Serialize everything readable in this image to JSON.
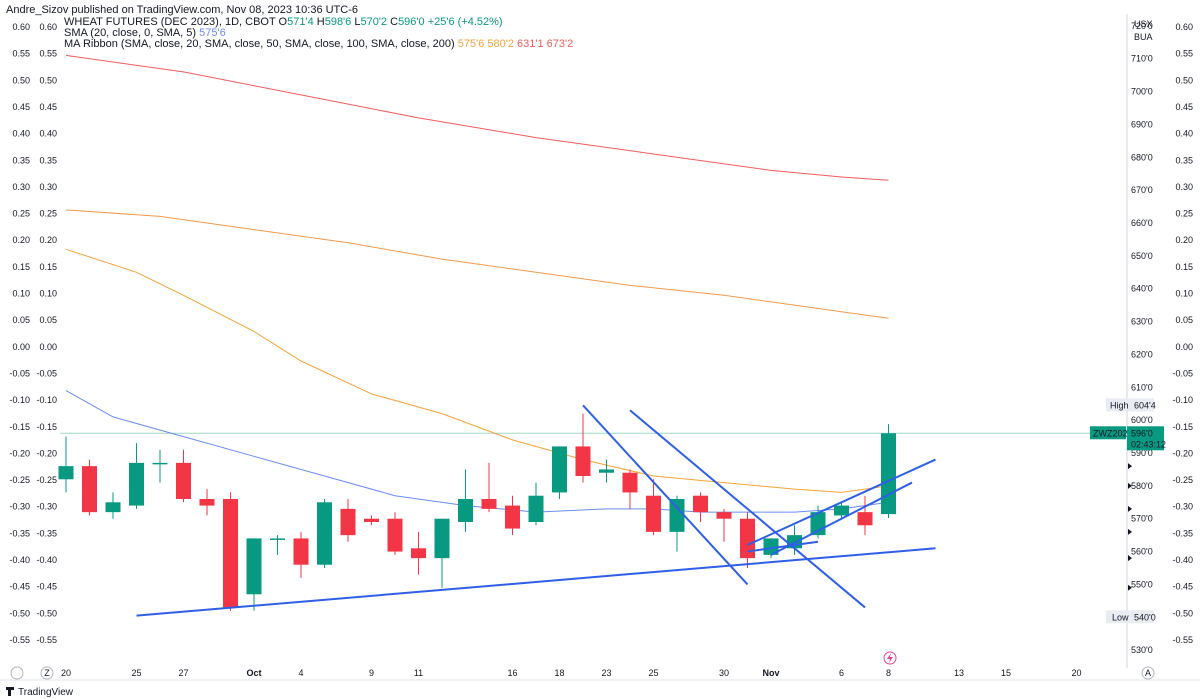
{
  "publisher": "Andre_Sizov published on TradingView.com, Nov 08, 2023 10:36 UTC-6",
  "legend": {
    "symbol": "WHEAT FUTURES (DEC 2023), 1D, CBOT",
    "ohlc": {
      "o_label": "O",
      "o": "571'4",
      "h_label": "H",
      "h": "598'6",
      "l_label": "L",
      "l": "570'2",
      "c_label": "C",
      "c": "596'0",
      "change": "+25'6 (+4.52%)"
    },
    "sma_label": "SMA (20, close, 0, SMA, 5)",
    "sma_value": "575'6",
    "ribbon_label": "MA Ribbon (SMA, close, 20, SMA, close, 50, SMA, close, 100, SMA, close, 200)",
    "ribbon_values": [
      "575'6",
      "580'2",
      "631'1",
      "673'2"
    ]
  },
  "currency": {
    "unit": "USX",
    "sub": "BUA"
  },
  "price_labels": {
    "high_label": "High",
    "high_value": "604'4",
    "low_label": "Low",
    "low_value": "540'0",
    "symbol_tag": "ZWZ2023",
    "last_price": "596'0",
    "countdown": "02:43:12"
  },
  "bottom": {
    "tz": "Z",
    "auto": "A",
    "brand": "TradingView"
  },
  "colors": {
    "up": "#089981",
    "down": "#f23645",
    "sma": "#6b8cf2",
    "ma50": "#f7a23a",
    "ma100": "#f29a4b",
    "ma200": "#f35c5c",
    "trendline": "#2f5fe6"
  },
  "chart_data": {
    "type": "candlestick",
    "x_ticks": [
      "20",
      "25",
      "27",
      "Oct",
      "4",
      "9",
      "11",
      "16",
      "18",
      "23",
      "25",
      "30",
      "Nov",
      "6",
      "8",
      "13",
      "15",
      "20"
    ],
    "price_ticks": [
      "530'0",
      "540'0",
      "550'0",
      "560'0",
      "570'0",
      "580'0",
      "590'0",
      "600'0",
      "610'0",
      "620'0",
      "630'0",
      "640'0",
      "650'0",
      "660'0",
      "670'0",
      "680'0",
      "690'0",
      "700'0",
      "710'0",
      "720'0"
    ],
    "left_ticks": [
      "0.60",
      "0.55",
      "0.50",
      "0.45",
      "0.40",
      "0.35",
      "0.30",
      "0.25",
      "0.20",
      "0.15",
      "0.10",
      "0.05",
      "0.00",
      "-0.05",
      "-0.10",
      "-0.15",
      "-0.20",
      "-0.25",
      "-0.30",
      "-0.35",
      "-0.40",
      "-0.45",
      "-0.50",
      "-0.55"
    ],
    "price_range": [
      527,
      723
    ],
    "candles": [
      {
        "o": 582.0,
        "h": 595.0,
        "l": 578.0,
        "c": 586.0
      },
      {
        "o": 586.0,
        "h": 588.0,
        "l": 571.0,
        "c": 572.0
      },
      {
        "o": 572.0,
        "h": 578.0,
        "l": 570.0,
        "c": 575.0
      },
      {
        "o": 574.0,
        "h": 593.0,
        "l": 573.0,
        "c": 587.0
      },
      {
        "o": 587.0,
        "h": 591.0,
        "l": 581.0,
        "c": 587.0
      },
      {
        "o": 587.0,
        "h": 591.0,
        "l": 575.0,
        "c": 576.0
      },
      {
        "o": 576.0,
        "h": 579.0,
        "l": 571.0,
        "c": 574.0
      },
      {
        "o": 576.0,
        "h": 578.0,
        "l": 542.0,
        "c": 543.0
      },
      {
        "o": 547.0,
        "h": 564.0,
        "l": 542.0,
        "c": 564.0
      },
      {
        "o": 564.0,
        "h": 565.0,
        "l": 559.0,
        "c": 564.0
      },
      {
        "o": 564.0,
        "h": 566.0,
        "l": 552.0,
        "c": 556.0
      },
      {
        "o": 556.0,
        "h": 576.0,
        "l": 555.0,
        "c": 575.0
      },
      {
        "o": 573.0,
        "h": 576.0,
        "l": 563.0,
        "c": 565.0
      },
      {
        "o": 570.0,
        "h": 571.0,
        "l": 568.0,
        "c": 569.0
      },
      {
        "o": 570.0,
        "h": 572.0,
        "l": 559.0,
        "c": 560.0
      },
      {
        "o": 561.0,
        "h": 566.0,
        "l": 553.0,
        "c": 558.0
      },
      {
        "o": 558.0,
        "h": 570.0,
        "l": 549.0,
        "c": 570.0
      },
      {
        "o": 569.0,
        "h": 585.0,
        "l": 566.0,
        "c": 576.0
      },
      {
        "o": 576.0,
        "h": 587.0,
        "l": 572.0,
        "c": 573.0
      },
      {
        "o": 574.0,
        "h": 577.0,
        "l": 565.0,
        "c": 567.0
      },
      {
        "o": 569.0,
        "h": 581.0,
        "l": 568.0,
        "c": 577.0
      },
      {
        "o": 578.0,
        "h": 592.0,
        "l": 576.0,
        "c": 592.0
      },
      {
        "o": 592.0,
        "h": 602.0,
        "l": 581.0,
        "c": 583.0
      },
      {
        "o": 584.0,
        "h": 588.0,
        "l": 581.0,
        "c": 585.0
      },
      {
        "o": 584.0,
        "h": 585.0,
        "l": 573.0,
        "c": 578.0
      },
      {
        "o": 577.0,
        "h": 582.0,
        "l": 565.0,
        "c": 566.0
      },
      {
        "o": 566.0,
        "h": 577.0,
        "l": 560.0,
        "c": 576.0
      },
      {
        "o": 577.0,
        "h": 578.0,
        "l": 569.0,
        "c": 572.0
      },
      {
        "o": 572.0,
        "h": 573.0,
        "l": 563.0,
        "c": 570.0
      },
      {
        "o": 570.0,
        "h": 572.0,
        "l": 555.0,
        "c": 558.0
      },
      {
        "o": 559.0,
        "h": 564.0,
        "l": 558.0,
        "c": 564.0
      },
      {
        "o": 561.0,
        "h": 568.0,
        "l": 559.0,
        "c": 565.0
      },
      {
        "o": 565.0,
        "h": 574.0,
        "l": 564.0,
        "c": 572.0
      },
      {
        "o": 571.0,
        "h": 575.0,
        "l": 570.0,
        "c": 574.0
      },
      {
        "o": 572.0,
        "h": 577.0,
        "l": 565.0,
        "c": 568.0
      },
      {
        "o": 571.4,
        "h": 598.8,
        "l": 570.2,
        "c": 596.0
      }
    ],
    "sma20": [
      [
        0,
        609.0
      ],
      [
        2,
        601.0
      ],
      [
        5,
        595.0
      ],
      [
        8,
        589.0
      ],
      [
        11,
        583.0
      ],
      [
        14,
        577.0
      ],
      [
        17,
        574.0
      ],
      [
        20,
        572.0
      ],
      [
        23,
        573.0
      ],
      [
        25,
        573.0
      ],
      [
        27,
        572.0
      ],
      [
        29,
        572.0
      ],
      [
        31,
        572.0
      ],
      [
        33,
        573.0
      ],
      [
        35,
        575.0
      ]
    ],
    "ma50": [
      [
        0,
        652.0
      ],
      [
        3,
        645.0
      ],
      [
        5,
        638.0
      ],
      [
        8,
        627.0
      ],
      [
        10,
        618.0
      ],
      [
        13,
        608.0
      ],
      [
        16,
        602.0
      ],
      [
        19,
        594.0
      ],
      [
        22,
        588.0
      ],
      [
        25,
        583.0
      ],
      [
        28,
        581.0
      ],
      [
        31,
        579.0
      ],
      [
        33,
        578.0
      ],
      [
        35,
        580.0
      ]
    ],
    "ma100": [
      [
        0,
        664.0
      ],
      [
        4,
        662.0
      ],
      [
        8,
        658.0
      ],
      [
        12,
        654.0
      ],
      [
        16,
        649.0
      ],
      [
        20,
        645.0
      ],
      [
        24,
        641.0
      ],
      [
        28,
        638.0
      ],
      [
        31,
        635.0
      ],
      [
        33,
        633.0
      ],
      [
        35,
        631.0
      ]
    ],
    "ma200": [
      [
        0,
        711.0
      ],
      [
        5,
        706.0
      ],
      [
        10,
        699.0
      ],
      [
        15,
        692.0
      ],
      [
        20,
        686.0
      ],
      [
        25,
        681.0
      ],
      [
        30,
        676.0
      ],
      [
        33,
        674.0
      ],
      [
        35,
        673.0
      ]
    ],
    "trendlines": [
      {
        "i1": 3,
        "p1": 540.5,
        "i2": 37,
        "p2": 561.0
      },
      {
        "i1": 22,
        "p1": 604.5,
        "i2": 29,
        "p2": 550.0
      },
      {
        "i1": 24,
        "p1": 603.0,
        "i2": 34,
        "p2": 543.0
      },
      {
        "i1": 29,
        "p1": 562.0,
        "i2": 37,
        "p2": 588.0
      },
      {
        "i1": 30,
        "p1": 559.0,
        "i2": 36,
        "p2": 581.0
      },
      {
        "i1": 29,
        "p1": 560.0,
        "i2": 32,
        "p2": 563.0
      }
    ],
    "high_line": 596.0
  }
}
